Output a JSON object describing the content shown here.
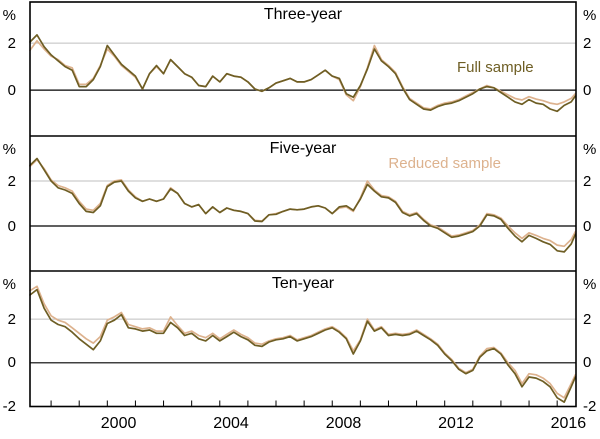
{
  "chart_data": {
    "type": "line",
    "unit_label": "%",
    "xlim": [
      1997.25,
      2016.67
    ],
    "x": {
      "start": 1997.25,
      "step": 0.25,
      "last_point": 2016.65
    },
    "x_minor_ticks": {
      "from": 1998,
      "to": 2016,
      "step": 1
    },
    "x_tick_labels": [
      {
        "label": "2000",
        "center_year": 2000.4
      },
      {
        "label": "2004",
        "center_year": 2004.4
      },
      {
        "label": "2008",
        "center_year": 2008.4
      },
      {
        "label": "2012",
        "center_year": 2012.4
      },
      {
        "label": "2016",
        "center_year": 2016.4
      }
    ],
    "y_gridline_value": 2,
    "colors": {
      "gridline": "#bfbfbf",
      "axis": "#000000",
      "background": "#ffffff"
    },
    "series": [
      {
        "id": "full",
        "name": "Full sample",
        "color": "#6e5e24"
      },
      {
        "id": "reduced",
        "name": "Reduced sample",
        "color": "#ddb28e"
      }
    ],
    "annotations": [
      {
        "series": "full",
        "panel": 0,
        "center_year": 2013.8,
        "value": 0.9
      },
      {
        "series": "reduced",
        "panel": 1,
        "center_year": 2012.0,
        "value": 2.7
      }
    ],
    "panels": [
      {
        "title": "Three-year",
        "ylim": [
          -1.95,
          3.75
        ],
        "y_tick_labels": [
          "2",
          "0"
        ],
        "series_values": {
          "full": [
            2.05,
            2.35,
            1.85,
            1.5,
            1.25,
            1.0,
            0.85,
            0.15,
            0.15,
            0.45,
            1.0,
            1.9,
            1.5,
            1.1,
            0.85,
            0.6,
            0.05,
            0.7,
            1.05,
            0.7,
            1.3,
            1.0,
            0.7,
            0.55,
            0.2,
            0.15,
            0.6,
            0.35,
            0.7,
            0.6,
            0.55,
            0.35,
            0.05,
            -0.05,
            0.1,
            0.3,
            0.4,
            0.5,
            0.35,
            0.35,
            0.45,
            0.65,
            0.85,
            0.6,
            0.5,
            -0.15,
            -0.3,
            0.2,
            0.9,
            1.75,
            1.25,
            1.0,
            0.7,
            0.1,
            -0.4,
            -0.6,
            -0.8,
            -0.85,
            -0.7,
            -0.6,
            -0.55,
            -0.45,
            -0.3,
            -0.15,
            0.05,
            0.15,
            0.1,
            -0.1,
            -0.3,
            -0.5,
            -0.6,
            -0.4,
            -0.55,
            -0.6,
            -0.8,
            -0.9,
            -0.65,
            -0.5,
            -0.25
          ],
          "reduced": [
            1.7,
            2.1,
            1.75,
            1.45,
            1.3,
            1.05,
            0.95,
            0.25,
            0.25,
            0.5,
            1.05,
            1.75,
            1.45,
            1.05,
            0.8,
            0.55,
            0.05,
            0.7,
            1.0,
            0.7,
            1.3,
            1.0,
            0.7,
            0.55,
            0.2,
            0.15,
            0.6,
            0.35,
            0.7,
            0.6,
            0.55,
            0.35,
            0.05,
            -0.05,
            0.1,
            0.3,
            0.4,
            0.5,
            0.35,
            0.35,
            0.45,
            0.65,
            0.85,
            0.6,
            0.45,
            -0.2,
            -0.45,
            0.15,
            0.95,
            1.9,
            1.3,
            1.05,
            0.75,
            0.15,
            -0.35,
            -0.55,
            -0.75,
            -0.8,
            -0.65,
            -0.55,
            -0.5,
            -0.4,
            -0.25,
            -0.1,
            0.05,
            0.2,
            0.1,
            -0.05,
            -0.2,
            -0.35,
            -0.42,
            -0.28,
            -0.38,
            -0.45,
            -0.55,
            -0.6,
            -0.5,
            -0.35,
            -0.15
          ]
        }
      },
      {
        "title": "Five-year",
        "ylim": [
          -2.0,
          4.0
        ],
        "y_tick_labels": [
          "2",
          "0"
        ],
        "series_values": {
          "full": [
            2.7,
            3.0,
            2.5,
            2.0,
            1.7,
            1.6,
            1.45,
            1.0,
            0.65,
            0.6,
            0.9,
            1.75,
            1.95,
            2.0,
            1.55,
            1.25,
            1.1,
            1.2,
            1.1,
            1.2,
            1.65,
            1.45,
            1.0,
            0.85,
            0.95,
            0.55,
            0.85,
            0.6,
            0.8,
            0.7,
            0.65,
            0.55,
            0.22,
            0.2,
            0.5,
            0.52,
            0.65,
            0.75,
            0.72,
            0.75,
            0.85,
            0.9,
            0.8,
            0.55,
            0.85,
            0.9,
            0.7,
            1.2,
            1.85,
            1.55,
            1.3,
            1.25,
            1.05,
            0.6,
            0.45,
            0.55,
            0.25,
            0.0,
            -0.1,
            -0.3,
            -0.5,
            -0.45,
            -0.35,
            -0.25,
            0.0,
            0.5,
            0.45,
            0.3,
            -0.1,
            -0.45,
            -0.7,
            -0.42,
            -0.55,
            -0.7,
            -0.82,
            -1.1,
            -1.15,
            -0.8,
            -0.37
          ],
          "reduced": [
            2.65,
            2.95,
            2.55,
            2.05,
            1.8,
            1.7,
            1.55,
            1.1,
            0.75,
            0.7,
            1.0,
            1.8,
            2.0,
            2.05,
            1.6,
            1.3,
            1.1,
            1.2,
            1.1,
            1.2,
            1.7,
            1.45,
            1.0,
            0.85,
            0.95,
            0.55,
            0.85,
            0.6,
            0.8,
            0.7,
            0.65,
            0.55,
            0.25,
            0.22,
            0.5,
            0.55,
            0.65,
            0.75,
            0.72,
            0.75,
            0.85,
            0.9,
            0.8,
            0.55,
            0.8,
            0.85,
            0.65,
            1.25,
            2.0,
            1.6,
            1.35,
            1.3,
            1.1,
            0.65,
            0.5,
            0.6,
            0.3,
            0.05,
            -0.05,
            -0.25,
            -0.45,
            -0.4,
            -0.3,
            -0.2,
            0.05,
            0.55,
            0.5,
            0.35,
            0.0,
            -0.3,
            -0.55,
            -0.3,
            -0.42,
            -0.55,
            -0.65,
            -0.85,
            -0.9,
            -0.6,
            -0.25
          ]
        }
      },
      {
        "title": "Ten-year",
        "ylim": [
          -2.0,
          4.2
        ],
        "y_tick_labels": [
          "2",
          "0",
          "-2"
        ],
        "series_values": {
          "full": [
            3.1,
            3.35,
            2.5,
            1.95,
            1.75,
            1.65,
            1.4,
            1.1,
            0.85,
            0.6,
            1.0,
            1.8,
            1.95,
            2.2,
            1.6,
            1.55,
            1.45,
            1.5,
            1.35,
            1.35,
            1.85,
            1.6,
            1.25,
            1.35,
            1.1,
            1.0,
            1.25,
            1.0,
            1.2,
            1.4,
            1.2,
            1.05,
            0.8,
            0.75,
            0.95,
            1.05,
            1.1,
            1.2,
            1.0,
            1.1,
            1.2,
            1.35,
            1.5,
            1.6,
            1.4,
            1.1,
            0.4,
            1.0,
            1.9,
            1.45,
            1.6,
            1.25,
            1.3,
            1.25,
            1.3,
            1.45,
            1.25,
            1.05,
            0.8,
            0.4,
            0.1,
            -0.3,
            -0.5,
            -0.35,
            0.25,
            0.55,
            0.65,
            0.4,
            -0.1,
            -0.5,
            -1.1,
            -0.65,
            -0.7,
            -0.85,
            -1.1,
            -1.6,
            -1.8,
            -1.1,
            -0.65
          ],
          "reduced": [
            3.3,
            3.5,
            2.7,
            2.15,
            1.95,
            1.85,
            1.6,
            1.35,
            1.1,
            0.9,
            1.2,
            1.95,
            2.1,
            2.3,
            1.75,
            1.65,
            1.55,
            1.6,
            1.45,
            1.45,
            2.1,
            1.7,
            1.35,
            1.45,
            1.25,
            1.15,
            1.35,
            1.1,
            1.3,
            1.5,
            1.3,
            1.15,
            0.9,
            0.85,
            1.0,
            1.1,
            1.15,
            1.25,
            1.05,
            1.15,
            1.25,
            1.4,
            1.55,
            1.65,
            1.45,
            1.15,
            0.55,
            1.05,
            2.0,
            1.5,
            1.65,
            1.3,
            1.35,
            1.3,
            1.35,
            1.5,
            1.3,
            1.1,
            0.85,
            0.45,
            0.15,
            -0.25,
            -0.45,
            -0.3,
            0.3,
            0.65,
            0.7,
            0.45,
            0.0,
            -0.35,
            -0.95,
            -0.5,
            -0.55,
            -0.7,
            -0.95,
            -1.4,
            -1.6,
            -0.95,
            -0.55
          ]
        }
      }
    ]
  }
}
